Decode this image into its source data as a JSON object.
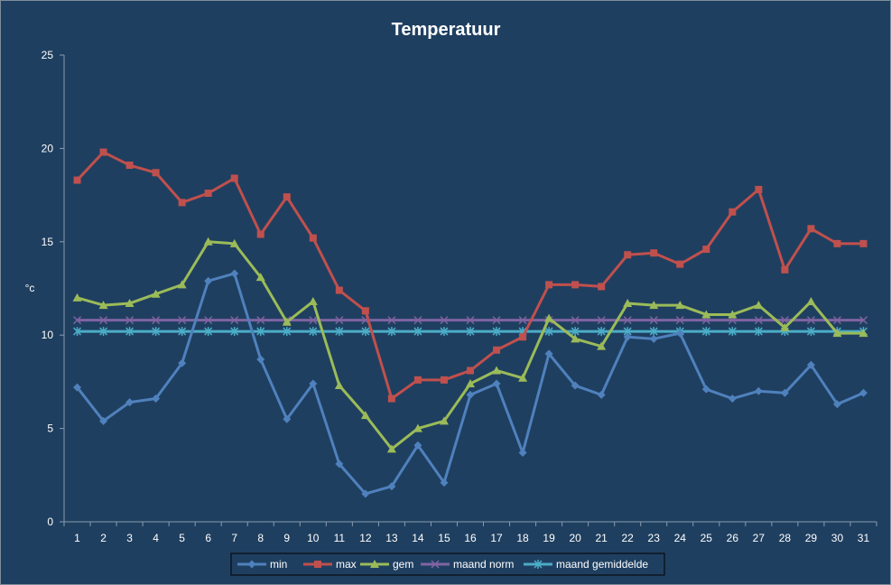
{
  "chart_data": {
    "type": "line",
    "title": "Temperatuur",
    "xlabel": "",
    "ylabel": "°c",
    "ylim": [
      0,
      25
    ],
    "yticks": [
      0,
      5,
      10,
      15,
      20,
      25
    ],
    "grid": false,
    "legend_position": "bottom",
    "categories": [
      "1",
      "2",
      "3",
      "4",
      "5",
      "6",
      "7",
      "8",
      "9",
      "10",
      "11",
      "12",
      "13",
      "14",
      "15",
      "16",
      "17",
      "18",
      "19",
      "20",
      "21",
      "22",
      "23",
      "24",
      "25",
      "26",
      "27",
      "28",
      "29",
      "30",
      "31"
    ],
    "series": [
      {
        "name": "min",
        "color": "#4f81bd",
        "marker": "diamond",
        "values": [
          7.2,
          5.4,
          6.4,
          6.6,
          8.5,
          12.9,
          13.3,
          8.7,
          5.5,
          7.4,
          3.1,
          1.5,
          1.9,
          4.1,
          2.1,
          6.8,
          7.4,
          3.7,
          9.0,
          7.3,
          6.8,
          9.9,
          9.8,
          10.1,
          7.1,
          6.6,
          7.0,
          6.9,
          8.4,
          6.3,
          6.9
        ]
      },
      {
        "name": "max",
        "color": "#c0504d",
        "marker": "square",
        "values": [
          18.3,
          19.8,
          19.1,
          18.7,
          17.1,
          17.6,
          18.4,
          15.4,
          17.4,
          15.2,
          12.4,
          11.3,
          6.6,
          7.6,
          7.6,
          8.1,
          9.2,
          9.9,
          12.7,
          12.7,
          12.6,
          14.3,
          14.4,
          13.8,
          14.6,
          16.6,
          17.8,
          13.5,
          15.7,
          14.9,
          14.9
        ]
      },
      {
        "name": "gem",
        "color": "#9bbb59",
        "marker": "triangle",
        "values": [
          12.0,
          11.6,
          11.7,
          12.2,
          12.7,
          15.0,
          14.9,
          13.1,
          10.7,
          11.8,
          7.3,
          5.7,
          3.9,
          5.0,
          5.4,
          7.4,
          8.1,
          7.7,
          10.9,
          9.8,
          9.4,
          11.7,
          11.6,
          11.6,
          11.1,
          11.1,
          11.6,
          10.4,
          11.8,
          10.1,
          10.1
        ]
      },
      {
        "name": "maand norm",
        "color": "#8064a2",
        "marker": "x",
        "values": [
          10.8,
          10.8,
          10.8,
          10.8,
          10.8,
          10.8,
          10.8,
          10.8,
          10.8,
          10.8,
          10.8,
          10.8,
          10.8,
          10.8,
          10.8,
          10.8,
          10.8,
          10.8,
          10.8,
          10.8,
          10.8,
          10.8,
          10.8,
          10.8,
          10.8,
          10.8,
          10.8,
          10.8,
          10.8,
          10.8,
          10.8
        ]
      },
      {
        "name": "maand gemiddelde",
        "color": "#4bacc6",
        "marker": "star",
        "values": [
          10.2,
          10.2,
          10.2,
          10.2,
          10.2,
          10.2,
          10.2,
          10.2,
          10.2,
          10.2,
          10.2,
          10.2,
          10.2,
          10.2,
          10.2,
          10.2,
          10.2,
          10.2,
          10.2,
          10.2,
          10.2,
          10.2,
          10.2,
          10.2,
          10.2,
          10.2,
          10.2,
          10.2,
          10.2,
          10.2,
          10.2
        ]
      }
    ]
  }
}
